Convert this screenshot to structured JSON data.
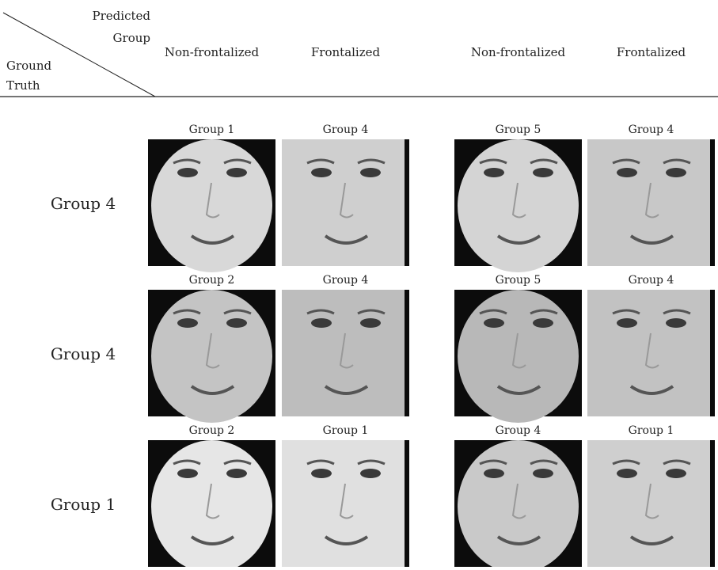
{
  "header": {
    "corner": {
      "predicted": "Predicted",
      "group": "Group",
      "ground": "Ground",
      "truth": "Truth"
    },
    "columns": [
      "Non-frontalized",
      "Frontalized",
      "Non-frontalized",
      "Frontalized"
    ]
  },
  "rows": [
    {
      "label": "Group 4",
      "predictions": [
        "Group 1",
        "Group 4",
        "Group 5",
        "Group 4"
      ]
    },
    {
      "label": "Group 4",
      "predictions": [
        "Group 2",
        "Group 4",
        "Group 5",
        "Group 4"
      ]
    },
    {
      "label": "Group 1",
      "predictions": [
        "Group 2",
        "Group 1",
        "Group 4",
        "Group 1"
      ]
    }
  ]
}
